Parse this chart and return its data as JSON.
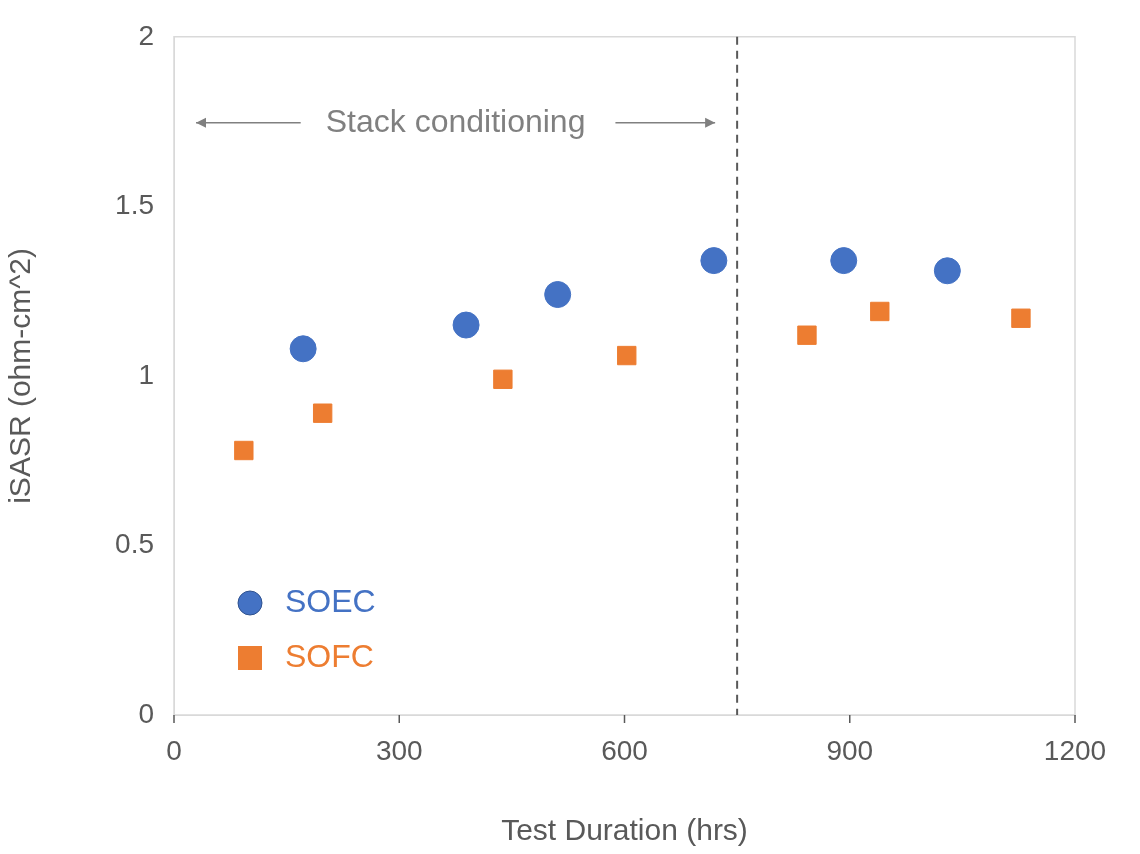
{
  "chart_data": {
    "type": "scatter",
    "xlabel": "Test Duration (hrs)",
    "ylabel": "iSASR (ohm-cm^2)",
    "xlim": [
      0,
      1200
    ],
    "xticks": [
      0,
      300,
      600,
      900,
      1200
    ],
    "ylim": [
      0,
      2
    ],
    "yticks": [
      0,
      0.5,
      1,
      1.5,
      2
    ],
    "grid": false,
    "legend": "bottom left",
    "series": [
      {
        "name": "SOEC",
        "color": "#4472c4",
        "marker": "circle",
        "x": [
          172,
          389,
          511,
          719,
          892,
          1030
        ],
        "values": [
          1.08,
          1.15,
          1.24,
          1.34,
          1.34,
          1.31
        ]
      },
      {
        "name": "SOFC",
        "color": "#ed7d31",
        "marker": "square",
        "x": [
          93,
          198,
          438,
          603,
          843,
          940,
          1128
        ],
        "values": [
          0.78,
          0.89,
          0.99,
          1.06,
          1.12,
          1.19,
          1.17
        ]
      }
    ],
    "ref_lines": [
      {
        "axis": "x",
        "value": 750,
        "color": "#595959",
        "line_style": "dashed"
      }
    ],
    "annotations": [
      "Stack conditioning"
    ]
  }
}
